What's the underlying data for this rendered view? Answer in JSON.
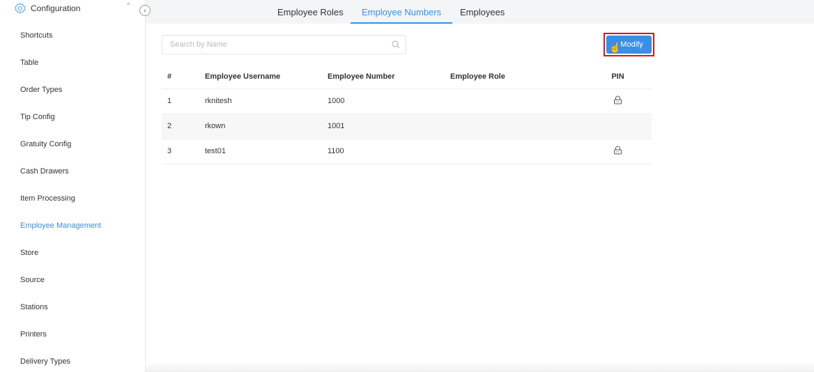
{
  "sidebar": {
    "section_title": "Configuration",
    "items": [
      {
        "label": "Shortcuts"
      },
      {
        "label": "Table"
      },
      {
        "label": "Order Types"
      },
      {
        "label": "Tip Config"
      },
      {
        "label": "Gratuity Config"
      },
      {
        "label": "Cash Drawers"
      },
      {
        "label": "Item Processing"
      },
      {
        "label": "Employee Management",
        "active": true
      },
      {
        "label": "Store"
      },
      {
        "label": "Source"
      },
      {
        "label": "Stations"
      },
      {
        "label": "Printers"
      },
      {
        "label": "Delivery Types"
      }
    ]
  },
  "tabs": [
    {
      "label": "Employee Roles"
    },
    {
      "label": "Employee Numbers",
      "active": true
    },
    {
      "label": "Employees"
    }
  ],
  "search": {
    "placeholder": "Search by Name"
  },
  "toolbar": {
    "modify_label": "Modify"
  },
  "table": {
    "headers": [
      "#",
      "Employee Username",
      "Employee Number",
      "Employee Role",
      "PIN"
    ],
    "rows": [
      {
        "index": "1",
        "username": "rknitesh",
        "number": "1000",
        "role": "",
        "pin_set": true
      },
      {
        "index": "2",
        "username": "rkown",
        "number": "1001",
        "role": "",
        "pin_set": false
      },
      {
        "index": "3",
        "username": "test01",
        "number": "1100",
        "role": "",
        "pin_set": true
      }
    ]
  },
  "colors": {
    "accent": "#3a8ee6",
    "highlight": "#e01010"
  }
}
